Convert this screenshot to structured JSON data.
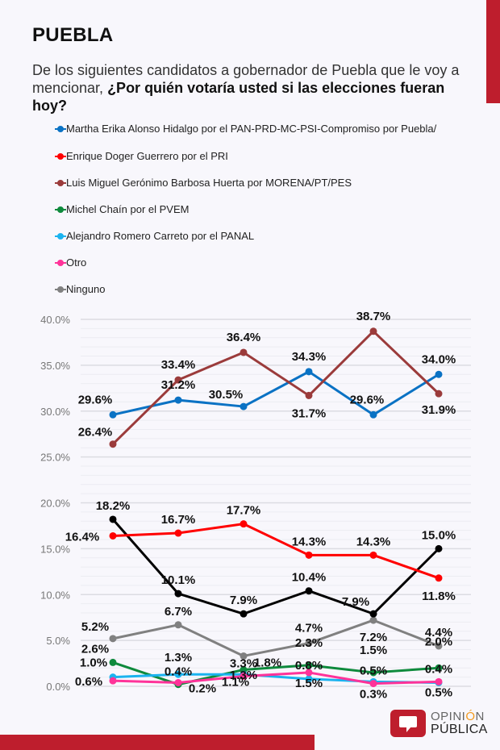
{
  "header": {
    "title": "PUEBLA",
    "question_plain": "De los siguientes candidatos a gobernador de Puebla que le voy a mencionar, ",
    "question_bold": "¿Por quién votaría usted si las elecciones fueran hoy?"
  },
  "brand": {
    "word1_a": "OPINI",
    "word1_accent": "Ó",
    "word1_b": "N",
    "word2": "PÚBLICA",
    "color": "#be1e2d"
  },
  "chart_data": {
    "type": "line",
    "title": "",
    "xlabel": "",
    "ylabel": "",
    "ylim": [
      0,
      40
    ],
    "yticks": [
      "0.0%",
      "5.0%",
      "10.0%",
      "15.0%",
      "20.0%",
      "25.0%",
      "30.0%",
      "35.0%",
      "40.0%"
    ],
    "ytick_values": [
      0,
      5,
      10,
      15,
      20,
      25,
      30,
      35,
      40
    ],
    "x": [
      1,
      2,
      3,
      4,
      5,
      6
    ],
    "x_tick_labels_visible": false,
    "grid": true,
    "legend_placement": "top",
    "series": [
      {
        "name": "Martha Erika Alonso Hidalgo por el PAN-PRD-MC-PSI-Compromiso por Puebla/",
        "color": "#0a72c4",
        "values": [
          29.6,
          31.2,
          30.5,
          34.3,
          29.6,
          34.0
        ],
        "in_legend": true
      },
      {
        "name": "Enrique Doger Guerrero por el PRI",
        "color": "#ff0000",
        "values": [
          16.4,
          16.7,
          17.7,
          14.3,
          14.3,
          11.8
        ],
        "in_legend": true
      },
      {
        "name": "Luis Miguel Gerónimo Barbosa Huerta por MORENA/PT/PES",
        "color": "#9b3b3b",
        "values": [
          26.4,
          33.4,
          36.4,
          31.7,
          38.7,
          31.9
        ],
        "in_legend": true
      },
      {
        "name": "Michel Chaín por el PVEM",
        "color": "#0e8a3c",
        "values": [
          2.6,
          0.2,
          1.8,
          2.3,
          1.5,
          2.0
        ],
        "in_legend": true
      },
      {
        "name": "Alejandro Romero Carreto por el PANAL",
        "color": "#1ab3ef",
        "values": [
          1.0,
          1.3,
          1.3,
          0.8,
          0.5,
          0.4
        ],
        "in_legend": true
      },
      {
        "name": "Otro",
        "color": "#ff3399",
        "values": [
          0.6,
          0.4,
          1.1,
          1.5,
          0.3,
          0.5
        ],
        "in_legend": true
      },
      {
        "name": "Ninguno",
        "color": "#808080",
        "values": [
          5.2,
          6.7,
          3.3,
          4.7,
          7.2,
          4.4
        ],
        "in_legend": true
      },
      {
        "name": "",
        "color": "#000000",
        "values": [
          18.2,
          10.1,
          7.9,
          10.4,
          7.9,
          15.0
        ],
        "in_legend": false
      }
    ],
    "data_labels": [
      {
        "series": 0,
        "labels": [
          "29.6%",
          "31.2%",
          "30.5%",
          "34.3%",
          "29.6%",
          "34.0%"
        ]
      },
      {
        "series": 1,
        "labels": [
          "16.4%",
          "16.7%",
          "17.7%",
          "14.3%",
          "14.3%",
          "11.8%"
        ]
      },
      {
        "series": 2,
        "labels": [
          "26.4%",
          "33.4%",
          "36.4%",
          "31.7%",
          "38.7%",
          "31.9%"
        ]
      },
      {
        "series": 3,
        "labels": [
          "2.6%",
          "0.2%",
          "1.8%",
          "2.3%",
          "1.5%",
          "2.0%"
        ]
      },
      {
        "series": 4,
        "labels": [
          "1.0%",
          "1.3%",
          "1.3%",
          "0.8%",
          "0.5%",
          "0.4%"
        ]
      },
      {
        "series": 5,
        "labels": [
          "0.6%",
          "0.4%",
          "1.1%",
          "1.5%",
          "0.3%",
          "0.5%"
        ]
      },
      {
        "series": 6,
        "labels": [
          "5.2%",
          "6.7%",
          "3.3%",
          "4.7%",
          "7.2%",
          "4.4%"
        ]
      },
      {
        "series": 7,
        "labels": [
          "18.2%",
          "10.1%",
          "7.9%",
          "10.4%",
          "7.9%",
          "15.0%"
        ]
      }
    ]
  }
}
